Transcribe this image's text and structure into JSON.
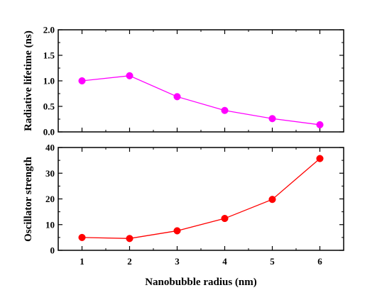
{
  "chart_data": [
    {
      "type": "line",
      "x": [
        1,
        2,
        3,
        4,
        5,
        6
      ],
      "series": [
        {
          "values": [
            1.0,
            1.1,
            0.69,
            0.42,
            0.26,
            0.14
          ],
          "color": "#ff00ff"
        }
      ],
      "xlabel": "",
      "ylabel": "Radiative lifetime (ns)",
      "xlim": [
        0.5,
        6.5
      ],
      "ylim": [
        0,
        2.0
      ],
      "yticks": [
        "0.0",
        "0.5",
        "1.0",
        "1.5",
        "2.0"
      ],
      "grid": false
    },
    {
      "type": "line",
      "x": [
        1,
        2,
        3,
        4,
        5,
        6
      ],
      "series": [
        {
          "values": [
            5.0,
            4.6,
            7.6,
            12.4,
            19.8,
            35.7
          ],
          "color": "#ff0000"
        }
      ],
      "xlabel": "Nanobubble radius (nm)",
      "ylabel": "Oscillator strength",
      "xlim": [
        0.5,
        6.5
      ],
      "ylim": [
        0,
        40
      ],
      "xticks": [
        "1",
        "2",
        "3",
        "4",
        "5",
        "6"
      ],
      "yticks": [
        "0",
        "10",
        "20",
        "30",
        "40"
      ],
      "grid": false
    }
  ]
}
